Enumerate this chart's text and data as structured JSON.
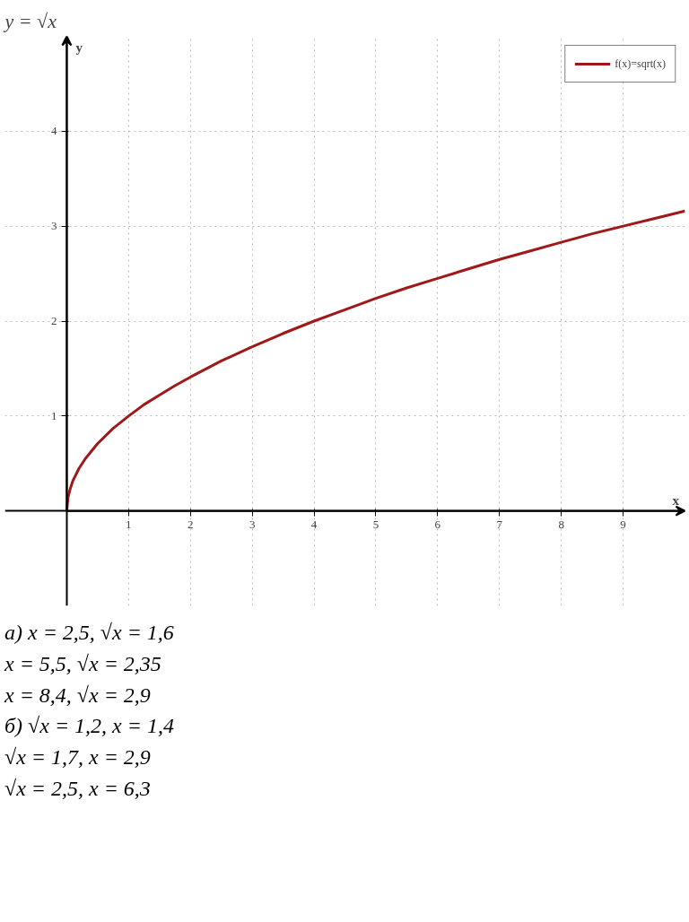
{
  "chart_data": {
    "type": "line",
    "title": "y = √x",
    "xlabel": "x",
    "ylabel": "y",
    "x": [
      0,
      0.02,
      0.05,
      0.1,
      0.2,
      0.3,
      0.4,
      0.5,
      0.75,
      1,
      1.25,
      1.5,
      1.75,
      2,
      2.5,
      3,
      3.5,
      4,
      4.5,
      5,
      5.5,
      6,
      6.5,
      7,
      7.5,
      8,
      8.5,
      9,
      9.5,
      10
    ],
    "series": [
      {
        "name": "f(x)=sqrt(x)",
        "color": "#a01818",
        "values": [
          0,
          0.14,
          0.22,
          0.32,
          0.45,
          0.55,
          0.63,
          0.71,
          0.87,
          1,
          1.12,
          1.22,
          1.32,
          1.41,
          1.58,
          1.73,
          1.87,
          2,
          2.12,
          2.24,
          2.35,
          2.45,
          2.55,
          2.65,
          2.74,
          2.83,
          2.92,
          3,
          3.08,
          3.16
        ]
      }
    ],
    "xlim": [
      -1,
      10
    ],
    "ylim": [
      -1,
      5
    ],
    "xticks": [
      1,
      2,
      3,
      4,
      5,
      6,
      7,
      8,
      9
    ],
    "yticks": [
      1,
      2,
      3,
      4
    ],
    "grid": true,
    "legend": "top right",
    "marker": "none",
    "line_style": "solid",
    "annotations": [
      "а) x = 2,5,     √x = 1,6",
      "x = 5,5,     √x = 2,35",
      "x = 8,4,     √x = 2,9",
      "б) √x = 1,2,     x = 1,4",
      "√x = 1,7,     x = 2,9",
      "√x = 2,5,     x = 6,3"
    ]
  }
}
